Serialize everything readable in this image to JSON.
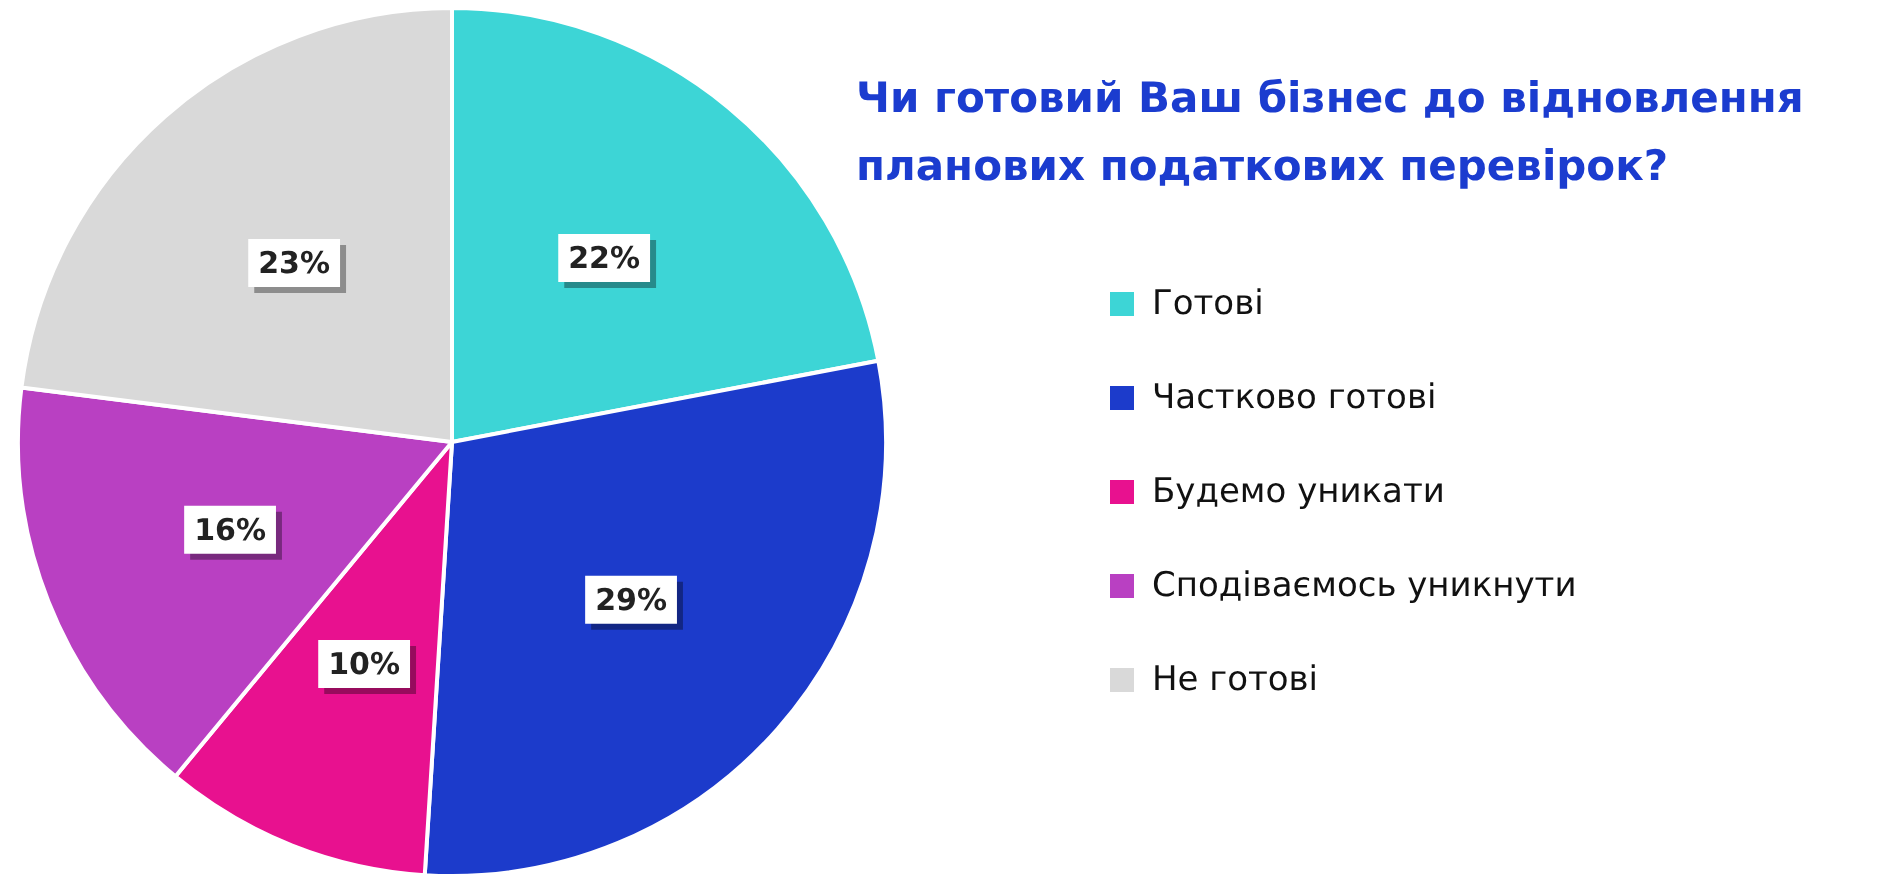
{
  "chart_data": {
    "type": "pie",
    "title": "Чи готовий Ваш бізнес до відновлення планових податкових перевірок?",
    "categories": [
      "Готові",
      "Частково готові",
      "Будемо уникати",
      "Сподіваємось уникнути",
      "Не готові"
    ],
    "values": [
      22,
      29,
      10,
      16,
      23
    ],
    "colors": [
      "#3dd5d6",
      "#1c3bcb",
      "#e8118f",
      "#b940c2",
      "#d9d9d9"
    ],
    "value_labels": [
      "22%",
      "29%",
      "10%",
      "16%",
      "23%"
    ],
    "legend": "right"
  }
}
